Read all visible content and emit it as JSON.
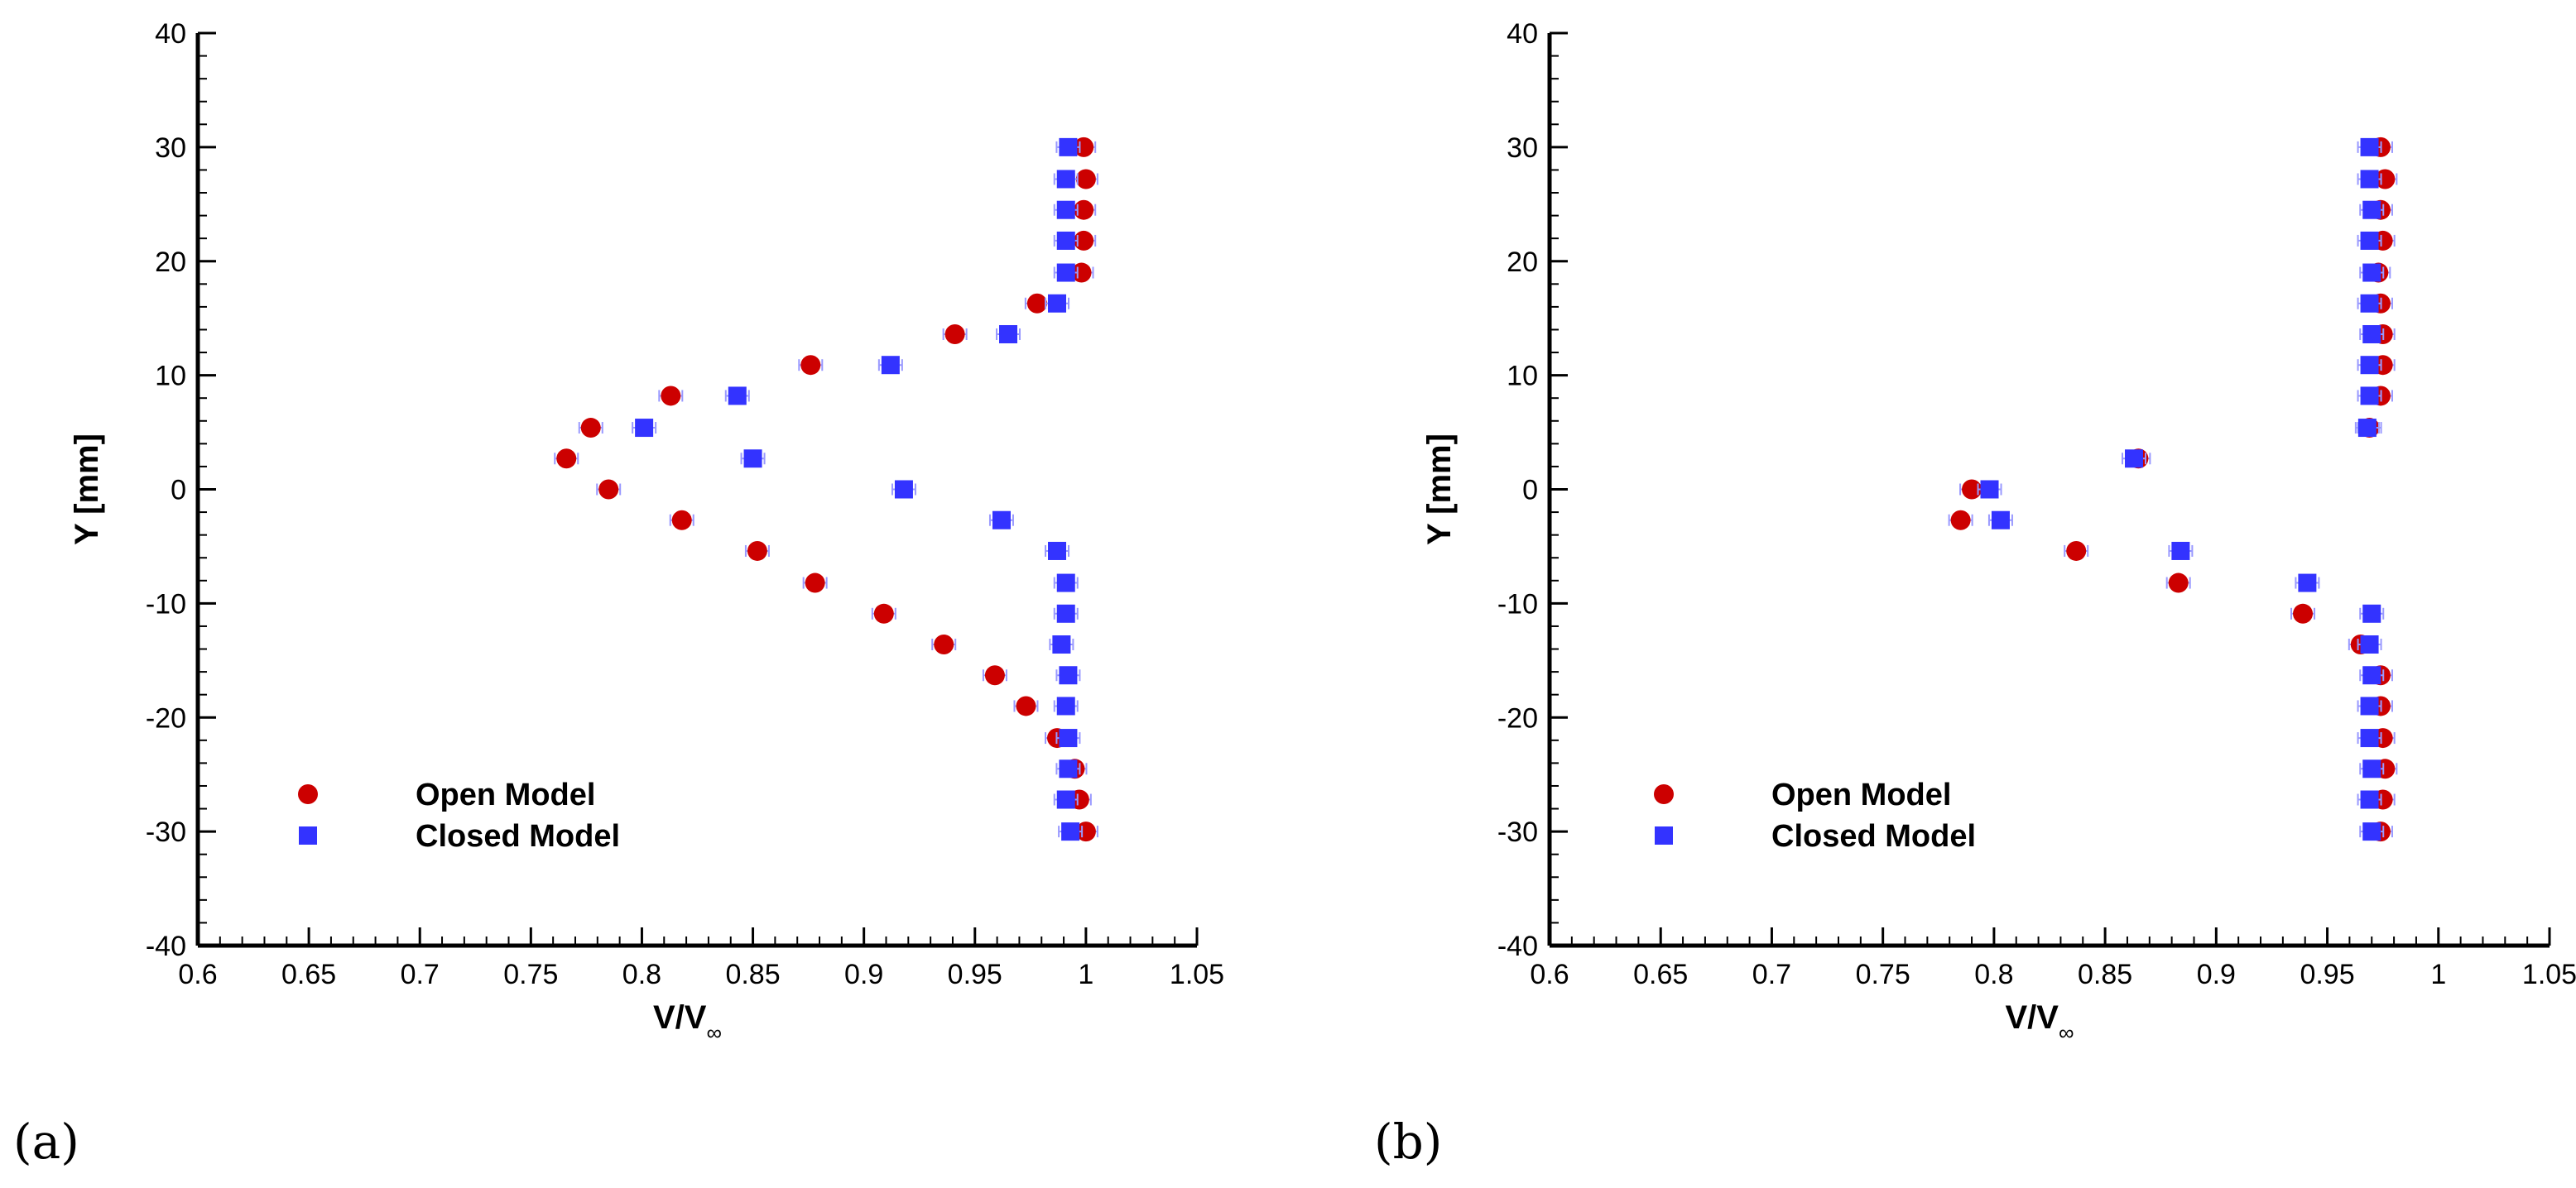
{
  "colors": {
    "open": "#cc0000",
    "closed": "#3333ff",
    "error_bar": "#9999ff",
    "axis": "#000000"
  },
  "chart_data": [
    {
      "type": "scatter",
      "panel_label": "(a)",
      "xlabel": "V/V",
      "xlabel_sub": "∞",
      "ylabel": "Y [mm]",
      "xlim": [
        0.6,
        1.05
      ],
      "ylim": [
        -40,
        40
      ],
      "xticks": [
        0.6,
        0.65,
        0.7,
        0.75,
        0.8,
        0.85,
        0.9,
        0.95,
        1,
        1.05
      ],
      "xtick_labels": [
        "0.6",
        "0.65",
        "0.7",
        "0.75",
        "0.8",
        "0.85",
        "0.9",
        "0.95",
        "1",
        "1.05"
      ],
      "yticks": [
        -40,
        -30,
        -20,
        -10,
        0,
        10,
        20,
        30,
        40
      ],
      "ytick_labels": [
        "-40",
        "-30",
        "-20",
        "-10",
        "0",
        "10",
        "20",
        "30",
        "40"
      ],
      "legend_position": "bottom-left",
      "series": [
        {
          "name": "Open Model",
          "marker": "circle",
          "color": "#cc0000",
          "points": [
            [
              0.999,
              30
            ],
            [
              1.0,
              27.2
            ],
            [
              0.999,
              24.5
            ],
            [
              0.999,
              21.8
            ],
            [
              0.998,
              19
            ],
            [
              0.978,
              16.3
            ],
            [
              0.941,
              13.6
            ],
            [
              0.876,
              10.9
            ],
            [
              0.813,
              8.2
            ],
            [
              0.777,
              5.4
            ],
            [
              0.766,
              2.7
            ],
            [
              0.785,
              0
            ],
            [
              0.818,
              -2.7
            ],
            [
              0.852,
              -5.4
            ],
            [
              0.878,
              -8.2
            ],
            [
              0.909,
              -10.9
            ],
            [
              0.936,
              -13.6
            ],
            [
              0.959,
              -16.3
            ],
            [
              0.973,
              -19
            ],
            [
              0.987,
              -21.8
            ],
            [
              0.995,
              -24.5
            ],
            [
              0.997,
              -27.2
            ],
            [
              1.0,
              -30
            ]
          ]
        },
        {
          "name": "Closed Model",
          "marker": "square",
          "color": "#3333ff",
          "points": [
            [
              0.992,
              30
            ],
            [
              0.991,
              27.2
            ],
            [
              0.991,
              24.5
            ],
            [
              0.991,
              21.8
            ],
            [
              0.991,
              19
            ],
            [
              0.987,
              16.3
            ],
            [
              0.965,
              13.6
            ],
            [
              0.912,
              10.9
            ],
            [
              0.843,
              8.2
            ],
            [
              0.801,
              5.4
            ],
            [
              0.85,
              2.7
            ],
            [
              0.918,
              0
            ],
            [
              0.962,
              -2.7
            ],
            [
              0.987,
              -5.4
            ],
            [
              0.991,
              -8.2
            ],
            [
              0.991,
              -10.9
            ],
            [
              0.989,
              -13.6
            ],
            [
              0.992,
              -16.3
            ],
            [
              0.991,
              -19
            ],
            [
              0.992,
              -21.8
            ],
            [
              0.992,
              -24.5
            ],
            [
              0.991,
              -27.2
            ],
            [
              0.993,
              -30
            ]
          ]
        }
      ]
    },
    {
      "type": "scatter",
      "panel_label": "(b)",
      "xlabel": "V/V",
      "xlabel_sub": "∞",
      "ylabel": "Y [mm]",
      "xlim": [
        0.6,
        1.05
      ],
      "ylim": [
        -40,
        40
      ],
      "xticks": [
        0.6,
        0.65,
        0.7,
        0.75,
        0.8,
        0.85,
        0.9,
        0.95,
        1,
        1.05
      ],
      "xtick_labels": [
        "0.6",
        "0.65",
        "0.7",
        "0.75",
        "0.8",
        "0.85",
        "0.9",
        "0.95",
        "1",
        "1.05"
      ],
      "yticks": [
        -40,
        -30,
        -20,
        -10,
        0,
        10,
        20,
        30,
        40
      ],
      "ytick_labels": [
        "-40",
        "-30",
        "-20",
        "-10",
        "0",
        "10",
        "20",
        "30",
        "40"
      ],
      "legend_position": "bottom-left",
      "series": [
        {
          "name": "Open Model",
          "marker": "circle",
          "color": "#cc0000",
          "points": [
            [
              0.974,
              30
            ],
            [
              0.976,
              27.2
            ],
            [
              0.974,
              24.5
            ],
            [
              0.975,
              21.8
            ],
            [
              0.973,
              19
            ],
            [
              0.974,
              16.3
            ],
            [
              0.975,
              13.6
            ],
            [
              0.975,
              10.9
            ],
            [
              0.974,
              8.2
            ],
            [
              0.969,
              5.4
            ],
            [
              0.865,
              2.7
            ],
            [
              0.79,
              0
            ],
            [
              0.785,
              -2.7
            ],
            [
              0.837,
              -5.4
            ],
            [
              0.883,
              -8.2
            ],
            [
              0.939,
              -10.9
            ],
            [
              0.965,
              -13.6
            ],
            [
              0.974,
              -16.3
            ],
            [
              0.974,
              -19
            ],
            [
              0.975,
              -21.8
            ],
            [
              0.976,
              -24.5
            ],
            [
              0.975,
              -27.2
            ],
            [
              0.974,
              -30
            ]
          ]
        },
        {
          "name": "Closed Model",
          "marker": "square",
          "color": "#3333ff",
          "points": [
            [
              0.969,
              30
            ],
            [
              0.969,
              27.2
            ],
            [
              0.97,
              24.5
            ],
            [
              0.969,
              21.8
            ],
            [
              0.97,
              19
            ],
            [
              0.969,
              16.3
            ],
            [
              0.97,
              13.6
            ],
            [
              0.969,
              10.9
            ],
            [
              0.969,
              8.2
            ],
            [
              0.968,
              5.4
            ],
            [
              0.863,
              2.7
            ],
            [
              0.798,
              0
            ],
            [
              0.803,
              -2.7
            ],
            [
              0.884,
              -5.4
            ],
            [
              0.941,
              -8.2
            ],
            [
              0.97,
              -10.9
            ],
            [
              0.969,
              -13.6
            ],
            [
              0.97,
              -16.3
            ],
            [
              0.969,
              -19
            ],
            [
              0.969,
              -21.8
            ],
            [
              0.97,
              -24.5
            ],
            [
              0.969,
              -27.2
            ],
            [
              0.97,
              -30
            ]
          ]
        }
      ]
    }
  ]
}
